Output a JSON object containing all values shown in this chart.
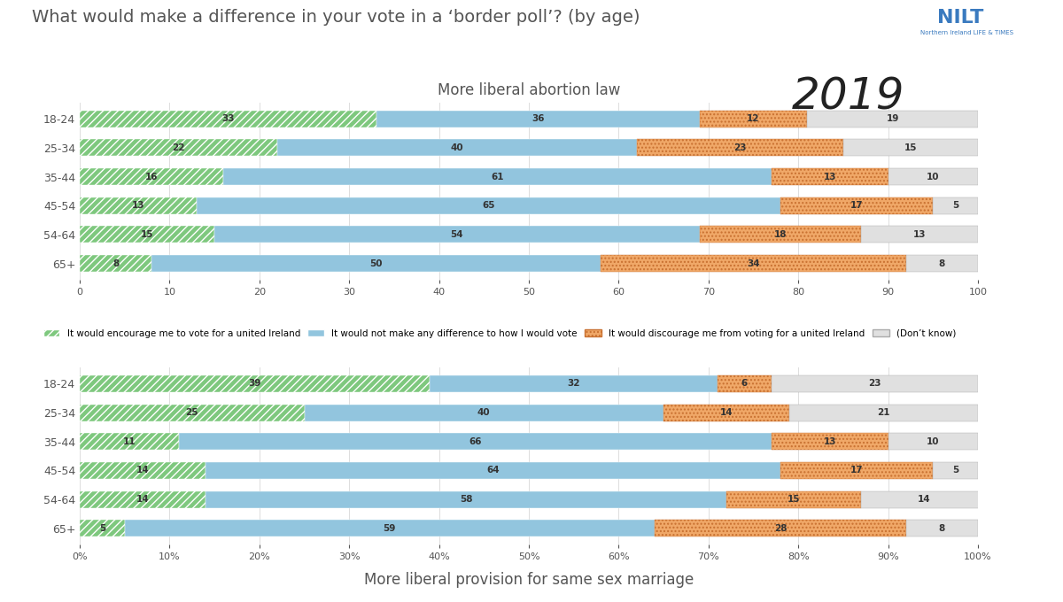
{
  "title": "What would make a difference in your vote in a ‘border poll’? (by age)",
  "year": "2019",
  "chart1_subtitle": "More liberal abortion law",
  "chart2_subtitle": "More liberal provision for same sex marriage",
  "age_groups": [
    "18-24",
    "25-34",
    "35-44",
    "45-54",
    "54-64",
    "65+"
  ],
  "chart1_data": {
    "encourage": [
      33,
      22,
      16,
      13,
      15,
      8
    ],
    "no_difference": [
      36,
      40,
      61,
      65,
      54,
      50
    ],
    "discourage": [
      12,
      23,
      13,
      17,
      18,
      34
    ],
    "dont_know": [
      19,
      15,
      10,
      5,
      13,
      8
    ]
  },
  "chart2_data": {
    "encourage": [
      39,
      25,
      11,
      14,
      14,
      5
    ],
    "no_difference": [
      32,
      40,
      66,
      64,
      58,
      59
    ],
    "discourage": [
      6,
      14,
      13,
      17,
      15,
      28
    ],
    "dont_know": [
      23,
      21,
      10,
      5,
      14,
      8
    ]
  },
  "colors": {
    "encourage": "#7ec87e",
    "no_difference": "#92c5de",
    "discourage": "#f0a868",
    "dont_know": "#e0e0e0"
  },
  "legend_labels": [
    "It would encourage me to vote for a united Ireland",
    "It would not make any difference to how I would vote",
    "It would discourage me from voting for a united Ireland",
    "(Don’t know)"
  ],
  "background_color": "#ffffff",
  "title_color": "#555555",
  "bar_label_color": "#333333",
  "ytick_color": "#555555",
  "nilt_color": "#3a7abf"
}
